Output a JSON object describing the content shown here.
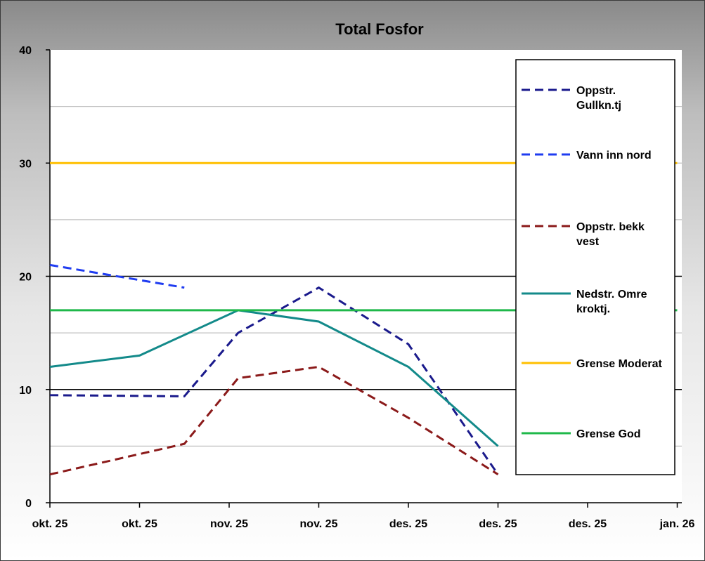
{
  "chart_data": {
    "type": "line",
    "title": "Total Fosfor",
    "xlabel": "",
    "ylabel": "",
    "ylim": [
      0,
      40
    ],
    "y_ticks": [
      "0",
      "10",
      "20",
      "30",
      "40"
    ],
    "x_tick_labels": [
      "okt. 25",
      "okt. 25",
      "nov. 25",
      "nov. 25",
      "des. 25",
      "des. 25",
      "des. 25",
      "jan. 26"
    ],
    "x_range": [
      0,
      7
    ],
    "grid": true,
    "legend_position": "right",
    "series": [
      {
        "name": "Oppstr. Gullkn.tj",
        "color": "#1a1a8c",
        "dashed": true,
        "points": [
          [
            0,
            9.5
          ],
          [
            1.5,
            9.4
          ],
          [
            2.1,
            15
          ],
          [
            3.0,
            19
          ],
          [
            4.0,
            14
          ],
          [
            5.0,
            2.5
          ]
        ]
      },
      {
        "name": "Vann inn nord",
        "color": "#1f3cf0",
        "dashed": true,
        "points": [
          [
            0,
            21
          ],
          [
            1.5,
            19
          ]
        ]
      },
      {
        "name": "Oppstr. bekk vest",
        "color": "#8b1a1a",
        "dashed": true,
        "points": [
          [
            0,
            2.5
          ],
          [
            1.5,
            5.2
          ],
          [
            2.1,
            11
          ],
          [
            3.0,
            12
          ],
          [
            4.0,
            7.5
          ],
          [
            5.0,
            2.5
          ]
        ]
      },
      {
        "name": "Nedstr. Omre kroktj.",
        "color": "#138a8a",
        "dashed": false,
        "points": [
          [
            0,
            12
          ],
          [
            1.0,
            13
          ],
          [
            2.1,
            17
          ],
          [
            3.0,
            16
          ],
          [
            4.0,
            12
          ],
          [
            5.0,
            5
          ]
        ]
      },
      {
        "name": "Grense Moderat",
        "color": "#ffbf00",
        "dashed": false,
        "points": [
          [
            0,
            30
          ],
          [
            7,
            30
          ]
        ]
      },
      {
        "name": "Grense God",
        "color": "#1fb84a",
        "dashed": false,
        "points": [
          [
            0,
            17
          ],
          [
            7,
            17
          ]
        ]
      }
    ]
  }
}
